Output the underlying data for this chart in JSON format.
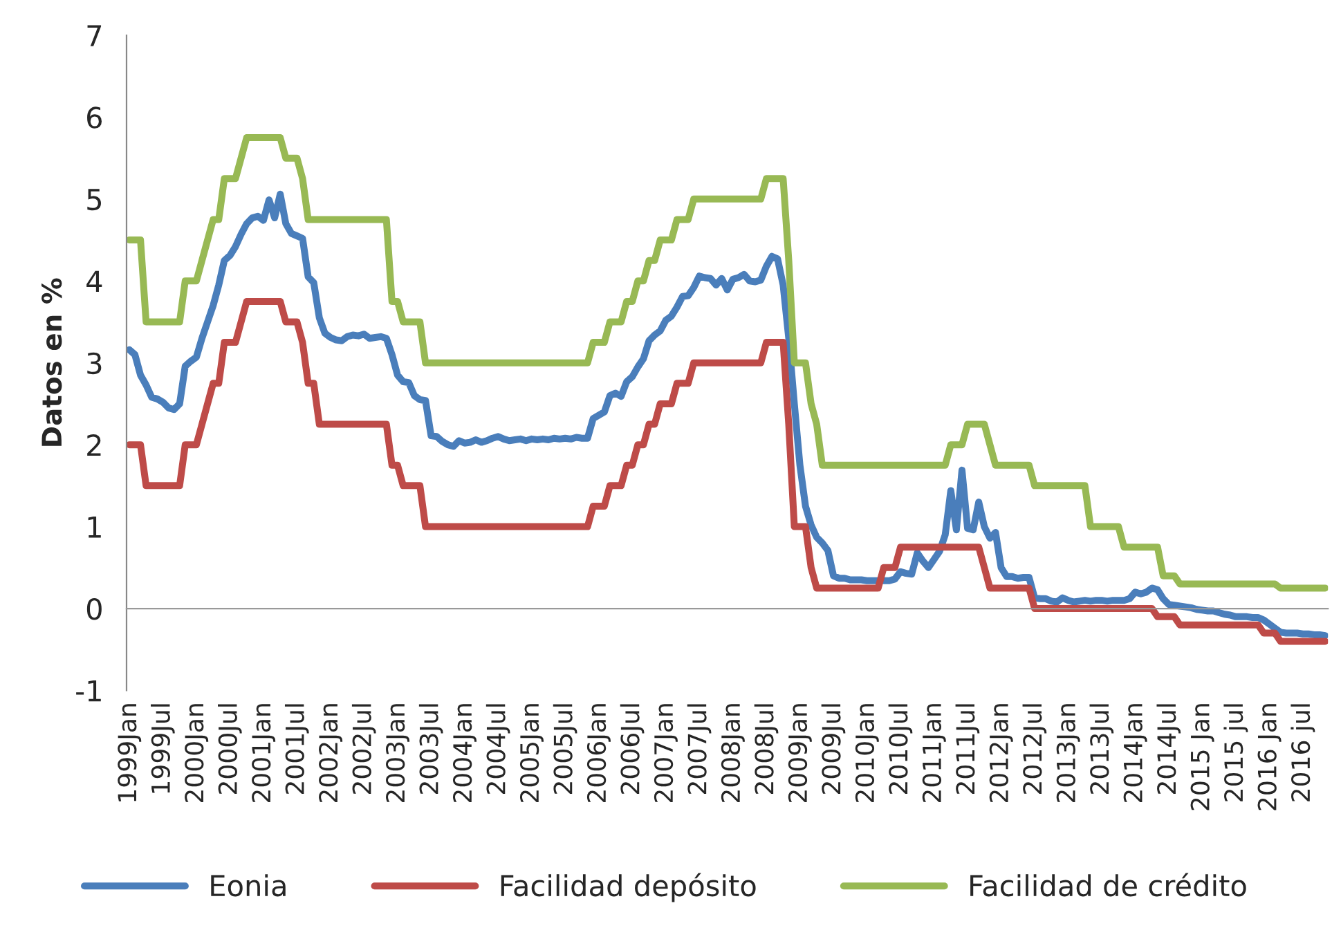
{
  "chart_data": {
    "type": "line",
    "ylabel": "Datos en %",
    "ylim": [
      -1,
      7
    ],
    "yticks": [
      -1,
      0,
      1,
      2,
      3,
      4,
      5,
      6,
      7
    ],
    "legend": "bottom",
    "categories": [
      "1999Jan",
      null,
      null,
      null,
      null,
      null,
      "1999Jul",
      null,
      null,
      null,
      null,
      null,
      "2000Jan",
      null,
      null,
      null,
      null,
      null,
      "2000Jul",
      null,
      null,
      null,
      null,
      null,
      "2001Jan",
      null,
      null,
      null,
      null,
      null,
      "2001Jul",
      null,
      null,
      null,
      null,
      null,
      "2002Jan",
      null,
      null,
      null,
      null,
      null,
      "2002Jul",
      null,
      null,
      null,
      null,
      null,
      "2003Jan",
      null,
      null,
      null,
      null,
      null,
      "2003Jul",
      null,
      null,
      null,
      null,
      null,
      "2004Jan",
      null,
      null,
      null,
      null,
      null,
      "2004Jul",
      null,
      null,
      null,
      null,
      null,
      "2005Jan",
      null,
      null,
      null,
      null,
      null,
      "2005Jul",
      null,
      null,
      null,
      null,
      null,
      "2006Jan",
      null,
      null,
      null,
      null,
      null,
      "2006Jul",
      null,
      null,
      null,
      null,
      null,
      "2007Jan",
      null,
      null,
      null,
      null,
      null,
      "2007Jul",
      null,
      null,
      null,
      null,
      null,
      "2008Jan",
      null,
      null,
      null,
      null,
      null,
      "2008Jul",
      null,
      null,
      null,
      null,
      null,
      "2009Jan",
      null,
      null,
      null,
      null,
      null,
      "2009Jul",
      null,
      null,
      null,
      null,
      null,
      "2010Jan",
      null,
      null,
      null,
      null,
      null,
      "2010Jul",
      null,
      null,
      null,
      null,
      null,
      "2011Jan",
      null,
      null,
      null,
      null,
      null,
      "2011Jul",
      null,
      null,
      null,
      null,
      null,
      "2012Jan",
      null,
      null,
      null,
      null,
      null,
      "2012Jul",
      null,
      null,
      null,
      null,
      null,
      "2013Jan",
      null,
      null,
      null,
      null,
      null,
      "2013Jul",
      null,
      null,
      null,
      null,
      null,
      "2014Jan",
      null,
      null,
      null,
      null,
      null,
      "2014Jul",
      null,
      null,
      null,
      null,
      null,
      "2015 Jan",
      null,
      null,
      null,
      null,
      null,
      "2015 jul",
      null,
      null,
      null,
      null,
      null,
      "2016 Jan",
      null,
      null,
      null,
      null,
      null,
      "2016 jul",
      null,
      null,
      null,
      null
    ],
    "series": [
      {
        "name": "Eonia",
        "color": "#4a7ebb",
        "values": [
          3.16,
          3.1,
          2.85,
          2.73,
          2.58,
          2.56,
          2.52,
          2.45,
          2.43,
          2.5,
          2.96,
          3.02,
          3.07,
          3.3,
          3.5,
          3.7,
          3.95,
          4.25,
          4.31,
          4.42,
          4.57,
          4.7,
          4.77,
          4.79,
          4.74,
          4.99,
          4.77,
          5.06,
          4.7,
          4.58,
          4.55,
          4.52,
          4.05,
          3.98,
          3.55,
          3.36,
          3.31,
          3.28,
          3.27,
          3.32,
          3.34,
          3.33,
          3.35,
          3.3,
          3.31,
          3.32,
          3.3,
          3.1,
          2.85,
          2.77,
          2.76,
          2.6,
          2.55,
          2.54,
          2.11,
          2.1,
          2.04,
          2.0,
          1.98,
          2.05,
          2.02,
          2.03,
          2.06,
          2.03,
          2.05,
          2.08,
          2.1,
          2.07,
          2.05,
          2.06,
          2.07,
          2.05,
          2.07,
          2.06,
          2.07,
          2.06,
          2.08,
          2.07,
          2.08,
          2.07,
          2.09,
          2.08,
          2.08,
          2.32,
          2.36,
          2.4,
          2.6,
          2.63,
          2.59,
          2.77,
          2.83,
          2.95,
          3.05,
          3.27,
          3.34,
          3.39,
          3.52,
          3.57,
          3.68,
          3.81,
          3.82,
          3.92,
          4.06,
          4.04,
          4.03,
          3.95,
          4.03,
          3.89,
          4.02,
          4.04,
          4.08,
          4.0,
          3.99,
          4.01,
          4.18,
          4.3,
          4.27,
          3.95,
          3.3,
          2.5,
          1.75,
          1.25,
          1.02,
          0.87,
          0.8,
          0.71,
          0.4,
          0.37,
          0.37,
          0.35,
          0.35,
          0.35,
          0.34,
          0.34,
          0.34,
          0.34,
          0.34,
          0.36,
          0.45,
          0.43,
          0.42,
          0.68,
          0.58,
          0.5,
          0.6,
          0.7,
          0.9,
          1.44,
          0.96,
          1.69,
          0.98,
          0.96,
          1.3,
          1.0,
          0.86,
          0.93,
          0.5,
          0.39,
          0.39,
          0.37,
          0.38,
          0.38,
          0.13,
          0.12,
          0.12,
          0.09,
          0.08,
          0.13,
          0.1,
          0.08,
          0.09,
          0.1,
          0.09,
          0.1,
          0.1,
          0.09,
          0.1,
          0.1,
          0.1,
          0.12,
          0.2,
          0.18,
          0.2,
          0.25,
          0.23,
          0.12,
          0.05,
          0.04,
          0.03,
          0.02,
          0.01,
          -0.01,
          -0.02,
          -0.03,
          -0.03,
          -0.05,
          -0.07,
          -0.08,
          -0.1,
          -0.1,
          -0.1,
          -0.11,
          -0.11,
          -0.14,
          -0.19,
          -0.24,
          -0.29,
          -0.3,
          -0.3,
          -0.3,
          -0.31,
          -0.31,
          -0.32,
          -0.32,
          -0.33
        ]
      },
      {
        "name": "Facilidad depósito",
        "color": "#be4b48",
        "values": [
          2.0,
          2.0,
          2.0,
          1.5,
          1.5,
          1.5,
          1.5,
          1.5,
          1.5,
          1.5,
          2.0,
          2.0,
          2.0,
          2.25,
          2.5,
          2.75,
          2.75,
          3.25,
          3.25,
          3.25,
          3.5,
          3.75,
          3.75,
          3.75,
          3.75,
          3.75,
          3.75,
          3.75,
          3.5,
          3.5,
          3.5,
          3.25,
          2.75,
          2.75,
          2.25,
          2.25,
          2.25,
          2.25,
          2.25,
          2.25,
          2.25,
          2.25,
          2.25,
          2.25,
          2.25,
          2.25,
          2.25,
          1.75,
          1.75,
          1.5,
          1.5,
          1.5,
          1.5,
          1.0,
          1.0,
          1.0,
          1.0,
          1.0,
          1.0,
          1.0,
          1.0,
          1.0,
          1.0,
          1.0,
          1.0,
          1.0,
          1.0,
          1.0,
          1.0,
          1.0,
          1.0,
          1.0,
          1.0,
          1.0,
          1.0,
          1.0,
          1.0,
          1.0,
          1.0,
          1.0,
          1.0,
          1.0,
          1.0,
          1.25,
          1.25,
          1.25,
          1.5,
          1.5,
          1.5,
          1.75,
          1.75,
          2.0,
          2.0,
          2.25,
          2.25,
          2.5,
          2.5,
          2.5,
          2.75,
          2.75,
          2.75,
          3.0,
          3.0,
          3.0,
          3.0,
          3.0,
          3.0,
          3.0,
          3.0,
          3.0,
          3.0,
          3.0,
          3.0,
          3.0,
          3.25,
          3.25,
          3.25,
          3.25,
          2.25,
          1.0,
          1.0,
          1.0,
          0.5,
          0.25,
          0.25,
          0.25,
          0.25,
          0.25,
          0.25,
          0.25,
          0.25,
          0.25,
          0.25,
          0.25,
          0.25,
          0.5,
          0.5,
          0.5,
          0.75,
          0.75,
          0.75,
          0.75,
          0.75,
          0.75,
          0.75,
          0.75,
          0.75,
          0.75,
          0.75,
          0.75,
          0.75,
          0.75,
          0.75,
          0.5,
          0.25,
          0.25,
          0.25,
          0.25,
          0.25,
          0.25,
          0.25,
          0.25,
          0.0,
          0.0,
          0.0,
          0.0,
          0.0,
          0.0,
          0.0,
          0.0,
          0.0,
          0.0,
          0.0,
          0.0,
          0.0,
          0.0,
          0.0,
          0.0,
          0.0,
          0.0,
          0.0,
          0.0,
          0.0,
          0.0,
          -0.1,
          -0.1,
          -0.1,
          -0.1,
          -0.2,
          -0.2,
          -0.2,
          -0.2,
          -0.2,
          -0.2,
          -0.2,
          -0.2,
          -0.2,
          -0.2,
          -0.2,
          -0.2,
          -0.2,
          -0.2,
          -0.2,
          -0.3,
          -0.3,
          -0.3,
          -0.4,
          -0.4,
          -0.4,
          -0.4,
          -0.4,
          -0.4,
          -0.4,
          -0.4,
          -0.4
        ]
      },
      {
        "name": "Facilidad de crédito",
        "color": "#98b954",
        "values": [
          4.5,
          4.5,
          4.5,
          3.5,
          3.5,
          3.5,
          3.5,
          3.5,
          3.5,
          3.5,
          4.0,
          4.0,
          4.0,
          4.25,
          4.5,
          4.75,
          4.75,
          5.25,
          5.25,
          5.25,
          5.5,
          5.75,
          5.75,
          5.75,
          5.75,
          5.75,
          5.75,
          5.75,
          5.5,
          5.5,
          5.5,
          5.25,
          4.75,
          4.75,
          4.75,
          4.75,
          4.75,
          4.75,
          4.75,
          4.75,
          4.75,
          4.75,
          4.75,
          4.75,
          4.75,
          4.75,
          4.75,
          3.75,
          3.75,
          3.5,
          3.5,
          3.5,
          3.5,
          3.0,
          3.0,
          3.0,
          3.0,
          3.0,
          3.0,
          3.0,
          3.0,
          3.0,
          3.0,
          3.0,
          3.0,
          3.0,
          3.0,
          3.0,
          3.0,
          3.0,
          3.0,
          3.0,
          3.0,
          3.0,
          3.0,
          3.0,
          3.0,
          3.0,
          3.0,
          3.0,
          3.0,
          3.0,
          3.0,
          3.25,
          3.25,
          3.25,
          3.5,
          3.5,
          3.5,
          3.75,
          3.75,
          4.0,
          4.0,
          4.25,
          4.25,
          4.5,
          4.5,
          4.5,
          4.75,
          4.75,
          4.75,
          5.0,
          5.0,
          5.0,
          5.0,
          5.0,
          5.0,
          5.0,
          5.0,
          5.0,
          5.0,
          5.0,
          5.0,
          5.0,
          5.25,
          5.25,
          5.25,
          5.25,
          4.25,
          3.0,
          3.0,
          3.0,
          2.5,
          2.25,
          1.75,
          1.75,
          1.75,
          1.75,
          1.75,
          1.75,
          1.75,
          1.75,
          1.75,
          1.75,
          1.75,
          1.75,
          1.75,
          1.75,
          1.75,
          1.75,
          1.75,
          1.75,
          1.75,
          1.75,
          1.75,
          1.75,
          1.75,
          2.0,
          2.0,
          2.0,
          2.25,
          2.25,
          2.25,
          2.25,
          2.0,
          1.75,
          1.75,
          1.75,
          1.75,
          1.75,
          1.75,
          1.75,
          1.5,
          1.5,
          1.5,
          1.5,
          1.5,
          1.5,
          1.5,
          1.5,
          1.5,
          1.5,
          1.0,
          1.0,
          1.0,
          1.0,
          1.0,
          1.0,
          0.75,
          0.75,
          0.75,
          0.75,
          0.75,
          0.75,
          0.75,
          0.4,
          0.4,
          0.4,
          0.3,
          0.3,
          0.3,
          0.3,
          0.3,
          0.3,
          0.3,
          0.3,
          0.3,
          0.3,
          0.3,
          0.3,
          0.3,
          0.3,
          0.3,
          0.3,
          0.3,
          0.3,
          0.25,
          0.25,
          0.25,
          0.25,
          0.25,
          0.25,
          0.25,
          0.25,
          0.25
        ]
      }
    ]
  }
}
